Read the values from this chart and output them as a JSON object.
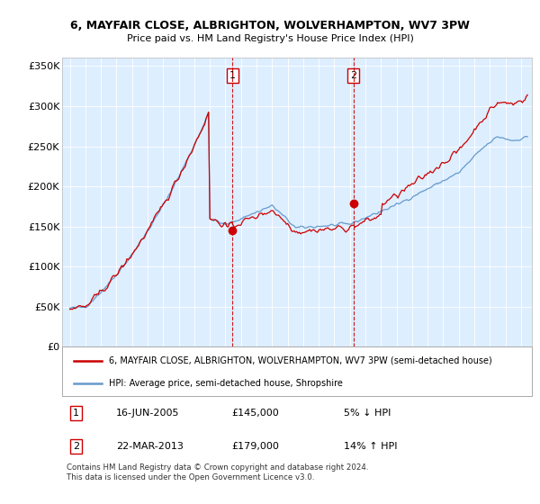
{
  "title": "6, MAYFAIR CLOSE, ALBRIGHTON, WOLVERHAMPTON, WV7 3PW",
  "subtitle": "Price paid vs. HM Land Registry's House Price Index (HPI)",
  "legend_line1": "6, MAYFAIR CLOSE, ALBRIGHTON, WOLVERHAMPTON, WV7 3PW (semi-detached house)",
  "legend_line2": "HPI: Average price, semi-detached house, Shropshire",
  "footer": "Contains HM Land Registry data © Crown copyright and database right 2024.\nThis data is licensed under the Open Government Licence v3.0.",
  "sale1_date": "16-JUN-2005",
  "sale1_price": 145000,
  "sale1_pct": "5% ↓ HPI",
  "sale2_date": "22-MAR-2013",
  "sale2_price": 179000,
  "sale2_pct": "14% ↑ HPI",
  "red_color": "#cc0000",
  "blue_color": "#6699cc",
  "background_plot": "#ddeeff",
  "highlight_color": "#cce0ff",
  "ylim": [
    0,
    360000
  ],
  "yticks": [
    0,
    50000,
    100000,
    150000,
    200000,
    250000,
    300000,
    350000
  ],
  "ytick_labels": [
    "£0",
    "£50K",
    "£100K",
    "£150K",
    "£200K",
    "£250K",
    "£300K",
    "£350K"
  ],
  "sale1_x": 2005.46,
  "sale2_x": 2013.23,
  "sale1_y": 145000,
  "sale2_y": 179000,
  "xmin": 1994.5,
  "xmax": 2024.7
}
